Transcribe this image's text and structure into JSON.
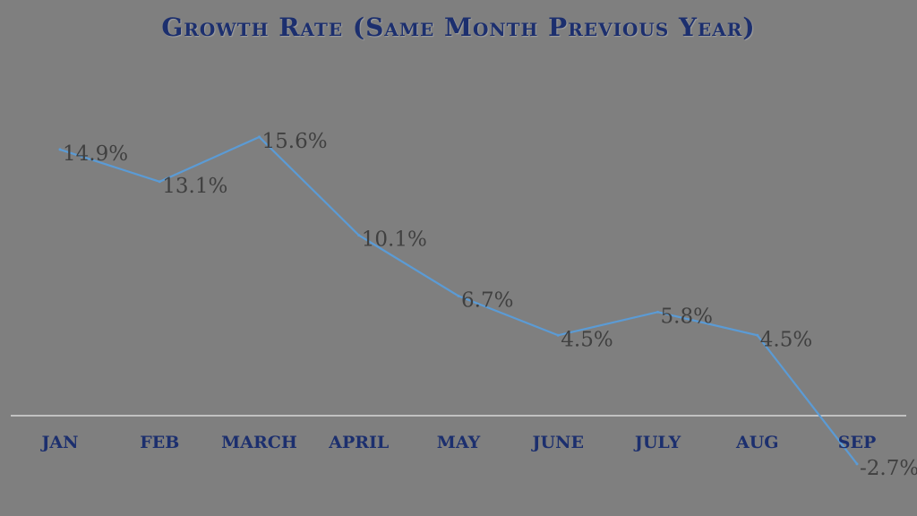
{
  "chart_data": {
    "type": "line",
    "title": "Growth Rate (Same Month Previous Year)",
    "categories": [
      "JAN",
      "FEB",
      "MARCH",
      "APRIL",
      "MAY",
      "JUNE",
      "JULY",
      "AUG",
      "SEP"
    ],
    "series": [
      {
        "name": "Growth rate",
        "values": [
          14.9,
          13.1,
          15.6,
          10.1,
          6.7,
          4.5,
          5.8,
          4.5,
          -2.7
        ]
      }
    ],
    "data_labels": [
      "14.9%",
      "13.1%",
      "15.6%",
      "10.1%",
      "6.7%",
      "4.5%",
      "5.8%",
      "4.5%",
      "-2.7%"
    ],
    "xlabel": "",
    "ylabel": "",
    "ylim": [
      -4,
      20
    ],
    "grid": false,
    "legend": "none",
    "colors": {
      "line": "#5b9bd5",
      "axis": "#d9d9d9",
      "category": "#1c2f6e",
      "label": "#404040"
    }
  }
}
